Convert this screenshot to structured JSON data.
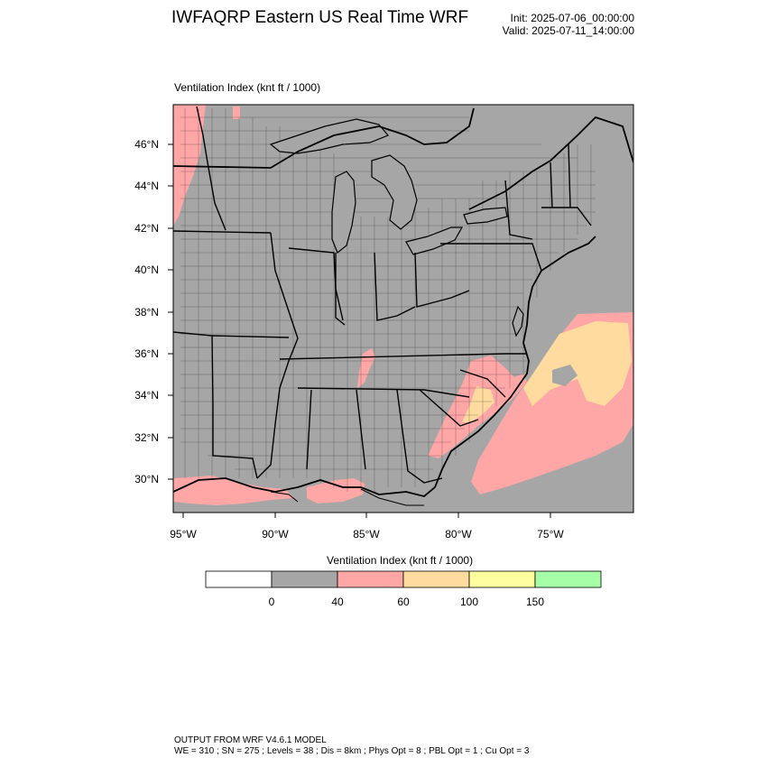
{
  "header": {
    "title": "IWFAQRP Eastern US Real Time WRF",
    "init": "Init: 2025-07-06_00:00:00",
    "valid": "Valid: 2025-07-11_14:00:00"
  },
  "map": {
    "field_label": "Ventilation Index   (knt ft / 1000)",
    "lat_labels": [
      "46°N",
      "44°N",
      "42°N",
      "40°N",
      "38°N",
      "36°N",
      "34°N",
      "32°N",
      "30°N"
    ],
    "lon_labels": [
      "95°W",
      "90°W",
      "85°W",
      "80°W",
      "75°W"
    ],
    "colors": {
      "background": "#a6a6a6",
      "low": "#ffa6a6",
      "mid": "#ffdb9f",
      "boundary": "#000000"
    }
  },
  "colorbar": {
    "title": "Ventilation Index  (knt ft / 1000)",
    "boxes": [
      {
        "color": "#ffffff"
      },
      {
        "color": "#a6a6a6"
      },
      {
        "color": "#ffa6a6"
      },
      {
        "color": "#ffdb9f"
      },
      {
        "color": "#ffff9f"
      },
      {
        "color": "#a6ffa6"
      }
    ],
    "tick_labels": [
      "0",
      "40",
      "60",
      "100",
      "150"
    ]
  },
  "footer": {
    "line1": "OUTPUT FROM WRF V4.6.1 MODEL",
    "line2": "WE = 310 ; SN = 275 ; Levels = 38 ; Dis = 8km ; Phys Opt = 8 ; PBL Opt = 1 ; Cu Opt = 3"
  }
}
